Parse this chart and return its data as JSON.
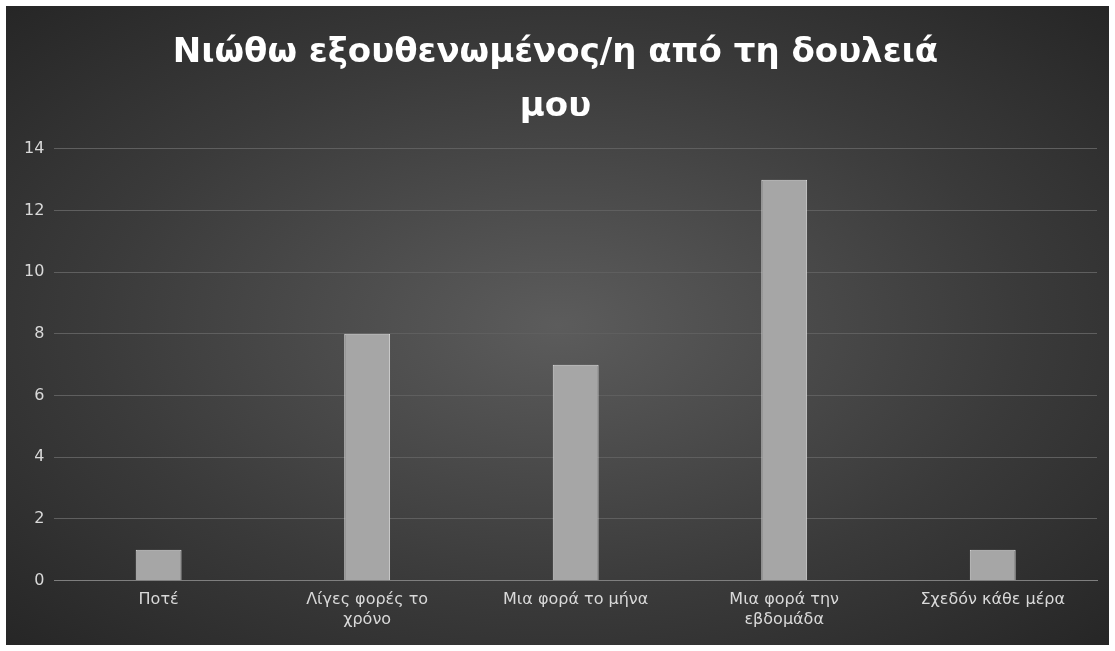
{
  "chart_data": {
    "type": "bar",
    "title": "Νιώθω εξουθενωμένος/η από τη δουλειά μου",
    "categories": [
      "Ποτέ",
      "Λίγες φορές το χρόνο",
      "Μια φορά το μήνα",
      "Μια φορά την εβδομάδα",
      "Σχεδόν κάθε μέρα"
    ],
    "values": [
      1,
      8,
      7,
      13,
      1
    ],
    "color": "#a6a6a6",
    "ylim": [
      0,
      14
    ],
    "yticks": [
      0,
      2,
      4,
      6,
      8,
      10,
      12,
      14
    ],
    "grid": "y",
    "legend": false
  }
}
